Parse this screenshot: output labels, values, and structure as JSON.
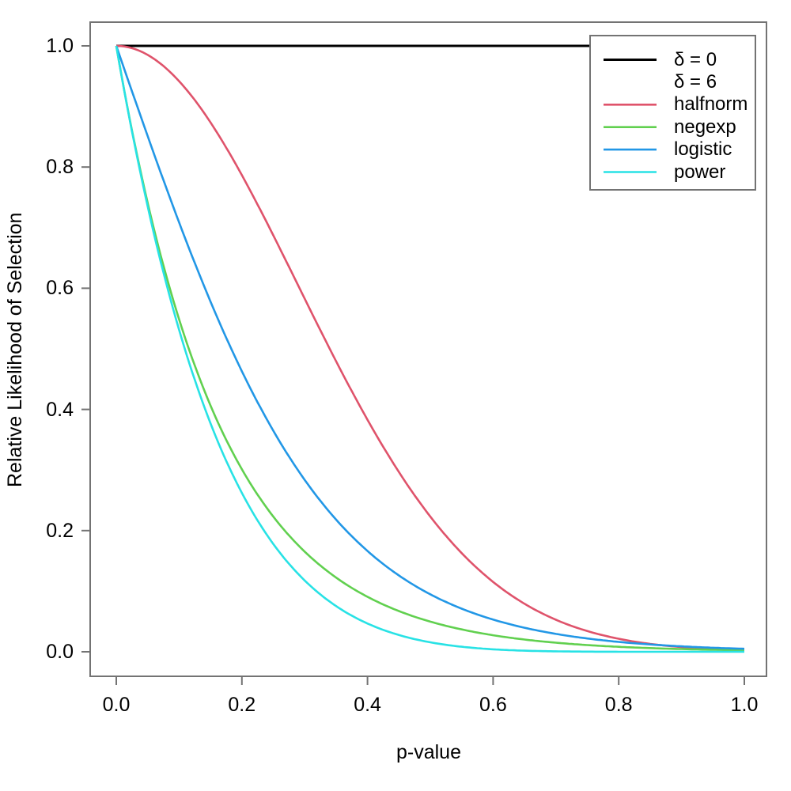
{
  "figure": {
    "background": "#FFFFFF",
    "axis_color": "#737373",
    "text_color": "#000000"
  },
  "chart_data": {
    "type": "line",
    "title": "",
    "xlabel": "p-value",
    "ylabel": "Relative Likelihood of Selection",
    "xlim": [
      0.0,
      1.0
    ],
    "ylim": [
      0.0,
      1.0
    ],
    "grid": "off",
    "x_ticks": {
      "values": [
        0.0,
        0.2,
        0.4,
        0.6,
        0.8,
        1.0
      ],
      "labels": [
        "0.0",
        "0.2",
        "0.4",
        "0.6",
        "0.8",
        "1.0"
      ]
    },
    "y_ticks": {
      "values": [
        0.0,
        0.2,
        0.4,
        0.6,
        0.8,
        1.0
      ],
      "labels": [
        "0.0",
        "0.2",
        "0.4",
        "0.6",
        "0.8",
        "1.0"
      ]
    },
    "x": [
      0.0,
      0.05,
      0.1,
      0.15,
      0.2,
      0.25,
      0.3,
      0.35,
      0.4,
      0.45,
      0.5,
      0.55,
      0.6,
      0.65,
      0.7,
      0.75,
      0.8,
      0.85,
      0.9,
      0.95,
      1.0
    ],
    "series": [
      {
        "name": "δ = 0",
        "model": "constant",
        "delta": 0,
        "color": "#000000",
        "line_width": 3,
        "values": [
          1,
          1,
          1,
          1,
          1,
          1,
          1,
          1,
          1,
          1,
          1,
          1,
          1,
          1,
          1,
          1,
          1,
          1,
          1,
          1,
          1
        ]
      },
      {
        "name": "halfnorm",
        "model": "halfnorm",
        "delta": 6,
        "color": "#DF536B",
        "line_width": 2.6,
        "values": [
          1,
          0.9851,
          0.9418,
          0.8737,
          0.7866,
          0.6873,
          0.5827,
          0.4795,
          0.3829,
          0.2967,
          0.2231,
          0.1629,
          0.1153,
          0.0793,
          0.0529,
          0.0342,
          0.0215,
          0.0131,
          0.0078,
          0.0044,
          0.0025
        ]
      },
      {
        "name": "negexp",
        "model": "negexp",
        "delta": 6,
        "color": "#61D04F",
        "line_width": 2.6,
        "values": [
          1,
          0.7408,
          0.5488,
          0.4066,
          0.3012,
          0.2231,
          0.1653,
          0.1225,
          0.0907,
          0.0672,
          0.0498,
          0.0369,
          0.0273,
          0.0202,
          0.015,
          0.0111,
          0.0082,
          0.0061,
          0.0045,
          0.0033,
          0.0025
        ]
      },
      {
        "name": "logistic",
        "model": "logistic",
        "delta": 6,
        "color": "#2297E6",
        "line_width": 2.6,
        "values": [
          1,
          0.8511,
          0.7087,
          0.5781,
          0.463,
          0.3648,
          0.2837,
          0.2182,
          0.1663,
          0.1259,
          0.0949,
          0.0711,
          0.0532,
          0.0397,
          0.0296,
          0.022,
          0.0163,
          0.0121,
          0.009,
          0.0067,
          0.0049
        ]
      },
      {
        "name": "power",
        "model": "power",
        "delta": 6,
        "color": "#28E2E5",
        "line_width": 2.6,
        "values": [
          1,
          0.7351,
          0.5314,
          0.3771,
          0.2621,
          0.178,
          0.1176,
          0.0754,
          0.0467,
          0.0277,
          0.0156,
          0.0083,
          0.0041,
          0.0018,
          0.0007,
          0.0002,
          0.0001,
          0,
          0,
          0,
          0
        ]
      }
    ],
    "legend": {
      "position": "top-right",
      "entries": [
        {
          "label": "δ = 0",
          "color": "#000000",
          "line_width": 3
        },
        {
          "label": "δ = 6",
          "color": null,
          "line_width": null
        },
        {
          "label": "halfnorm",
          "color": "#DF536B",
          "line_width": 2.6
        },
        {
          "label": "negexp",
          "color": "#61D04F",
          "line_width": 2.6
        },
        {
          "label": "logistic",
          "color": "#2297E6",
          "line_width": 2.6
        },
        {
          "label": "power",
          "color": "#28E2E5",
          "line_width": 2.6
        }
      ]
    }
  }
}
